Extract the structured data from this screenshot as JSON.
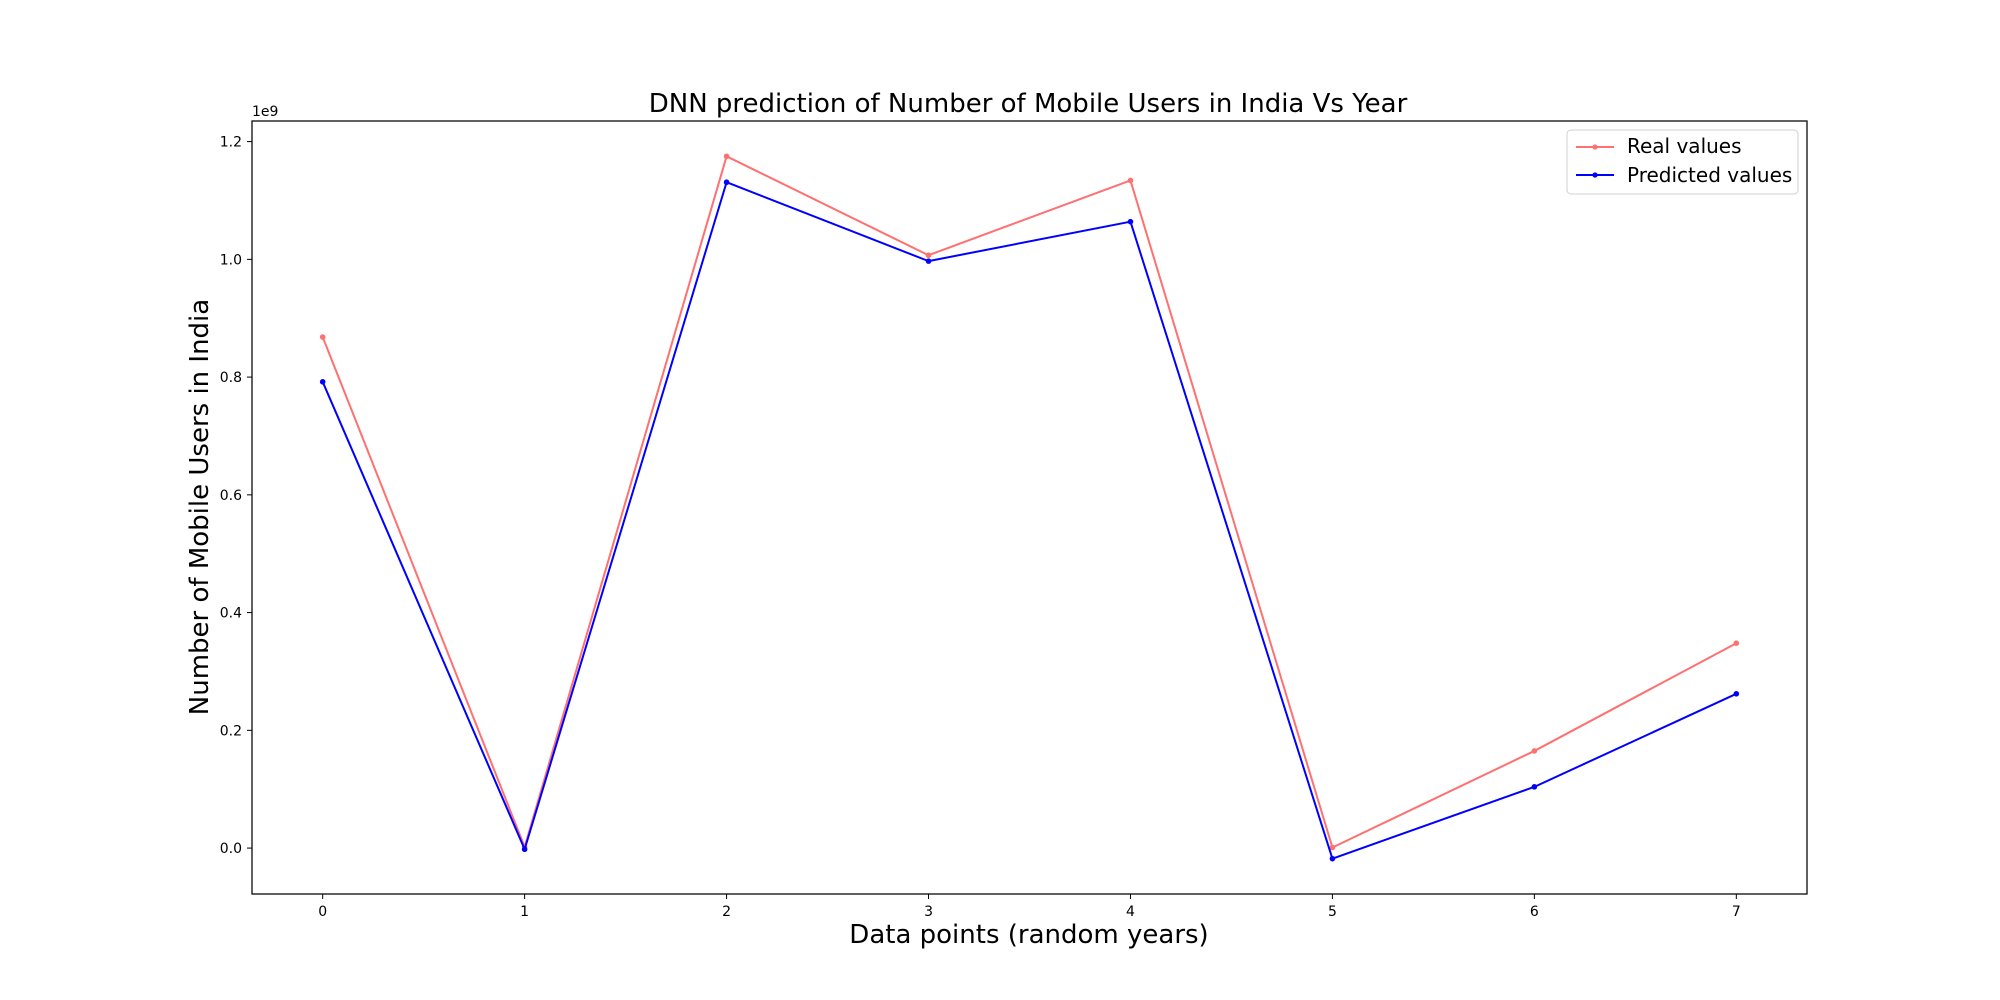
{
  "chart_data": {
    "type": "line",
    "title": "DNN prediction of Number of Mobile Users in India Vs Year",
    "xlabel": "Data points (random years)",
    "ylabel": "Number of Mobile Users in India",
    "y_offset_label": "1e9",
    "x": [
      0,
      1,
      2,
      3,
      4,
      5,
      6,
      7
    ],
    "xlim": [
      -0.35,
      7.35
    ],
    "ylim": [
      -0.078,
      1.235
    ],
    "x_ticks": [
      "0",
      "1",
      "2",
      "3",
      "4",
      "5",
      "6",
      "7"
    ],
    "y_ticks": [
      "0.0",
      "0.2",
      "0.4",
      "0.6",
      "0.8",
      "1.0",
      "1.2"
    ],
    "grid": false,
    "legend_position": "top-right",
    "series": [
      {
        "name": "Real values",
        "color": "#ff7070",
        "marker": "dot",
        "values": [
          0.868,
          0.002,
          1.175,
          1.007,
          1.134,
          0.001,
          0.165,
          0.348
        ]
      },
      {
        "name": "Predicted values",
        "color": "#0000ff",
        "marker": "dot",
        "values": [
          0.792,
          -0.002,
          1.131,
          0.997,
          1.064,
          -0.018,
          0.104,
          0.262
        ]
      }
    ]
  }
}
